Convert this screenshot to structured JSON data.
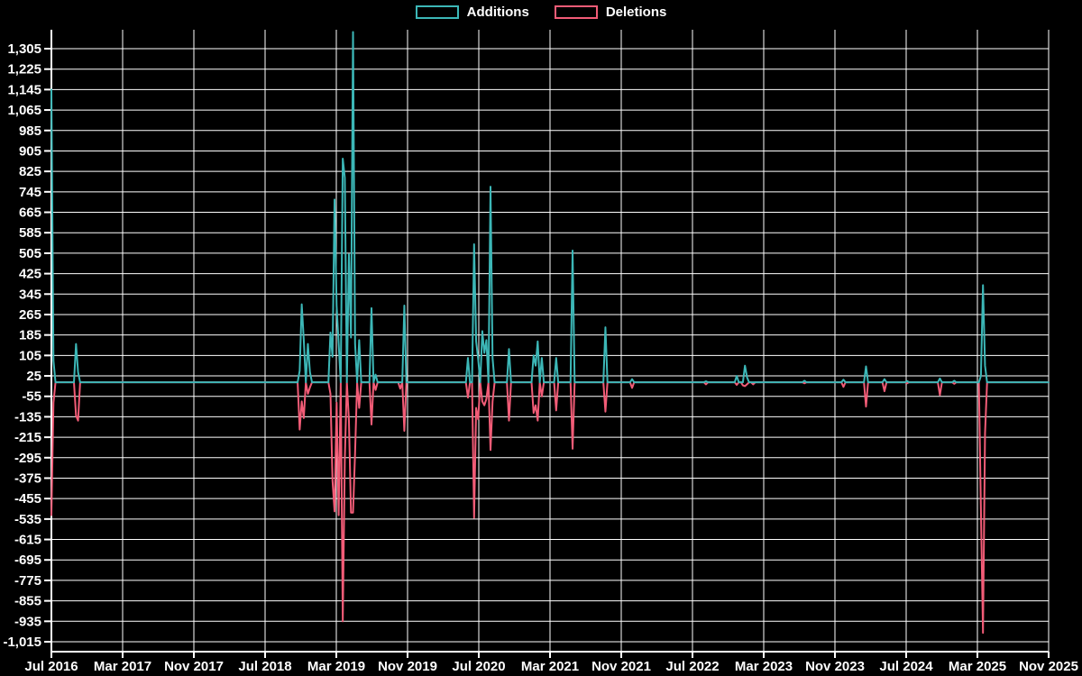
{
  "chart_data": {
    "type": "line",
    "title": "",
    "legend": [
      {
        "label": "Additions",
        "color": "#3cb7b7"
      },
      {
        "label": "Deletions",
        "color": "#f25c77"
      }
    ],
    "background_color": "#000000",
    "grid_color": "#ffffff",
    "text_color": "#ffffff",
    "grid": true,
    "legend_position": "top-center",
    "x_axis": {
      "labels": [
        "Jul 2016",
        "Mar 2017",
        "Nov 2017",
        "Jul 2018",
        "Mar 2019",
        "Nov 2019",
        "Jul 2020",
        "Mar 2021",
        "Nov 2021",
        "Jul 2022",
        "Mar 2023",
        "Nov 2023",
        "Jul 2024",
        "Mar 2025",
        "Nov 2025"
      ]
    },
    "y_axis": {
      "labels": [
        "1,305",
        "1,225",
        "1,145",
        "1,065",
        "985",
        "905",
        "825",
        "745",
        "665",
        "585",
        "505",
        "425",
        "345",
        "265",
        "185",
        "105",
        "25",
        "-55",
        "-135",
        "-215",
        "-295",
        "-375",
        "-455",
        "-535",
        "-615",
        "-695",
        "-775",
        "-855",
        "-935",
        "-1,015"
      ],
      "top_value": 1305,
      "bottom_value": -1015,
      "step": 80
    },
    "x_unit": "week",
    "total_weeks": 487,
    "points_format": [
      "week_index",
      "additions",
      "deletions"
    ],
    "points": [
      [
        0,
        1145,
        -520
      ],
      [
        1,
        85,
        -80
      ],
      [
        12,
        150,
        -130
      ],
      [
        13,
        40,
        -150
      ],
      [
        121,
        45,
        -185
      ],
      [
        122,
        305,
        -75
      ],
      [
        123,
        165,
        -140
      ],
      [
        125,
        150,
        -45
      ],
      [
        126,
        40,
        -20
      ],
      [
        136,
        195,
        -45
      ],
      [
        137,
        100,
        -385
      ],
      [
        138,
        715,
        -505
      ],
      [
        139,
        300,
        -80
      ],
      [
        140,
        150,
        -520
      ],
      [
        142,
        875,
        -935
      ],
      [
        143,
        800,
        -300
      ],
      [
        145,
        500,
        -150
      ],
      [
        146,
        175,
        -510
      ],
      [
        147,
        1370,
        -510
      ],
      [
        148,
        150,
        -275
      ],
      [
        150,
        165,
        -100
      ],
      [
        156,
        290,
        -165
      ],
      [
        158,
        30,
        -30
      ],
      [
        170,
        0,
        -25
      ],
      [
        172,
        300,
        -190
      ],
      [
        203,
        95,
        -60
      ],
      [
        206,
        540,
        -530
      ],
      [
        207,
        160,
        -100
      ],
      [
        208,
        90,
        -145
      ],
      [
        210,
        200,
        -75
      ],
      [
        211,
        115,
        -90
      ],
      [
        212,
        165,
        -65
      ],
      [
        214,
        765,
        -265
      ],
      [
        215,
        95,
        -75
      ],
      [
        223,
        130,
        -150
      ],
      [
        235,
        105,
        -120
      ],
      [
        236,
        65,
        -90
      ],
      [
        237,
        160,
        -150
      ],
      [
        239,
        95,
        -55
      ],
      [
        246,
        95,
        -110
      ],
      [
        254,
        515,
        -260
      ],
      [
        270,
        215,
        -115
      ],
      [
        283,
        12,
        -22
      ],
      [
        319,
        4,
        -8
      ],
      [
        334,
        25,
        -10
      ],
      [
        337,
        0,
        -12
      ],
      [
        338,
        65,
        -15
      ],
      [
        339,
        20,
        -8
      ],
      [
        342,
        0,
        -8
      ],
      [
        367,
        6,
        -4
      ],
      [
        386,
        10,
        -18
      ],
      [
        397,
        62,
        -95
      ],
      [
        406,
        12,
        -35
      ],
      [
        417,
        5,
        -4
      ],
      [
        433,
        15,
        -50
      ],
      [
        440,
        6,
        -6
      ],
      [
        453,
        25,
        -500
      ],
      [
        454,
        380,
        -980
      ],
      [
        455,
        65,
        -200
      ]
    ]
  }
}
